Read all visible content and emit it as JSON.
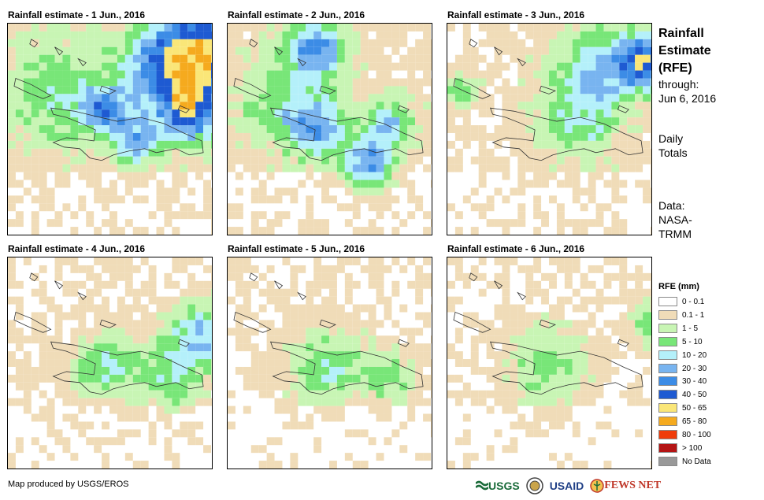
{
  "panels": [
    {
      "title": "Rainfall estimate - 1 Jun., 2016",
      "day": 1
    },
    {
      "title": "Rainfall estimate - 2 Jun., 2016",
      "day": 2
    },
    {
      "title": "Rainfall estimate - 3 Jun., 2016",
      "day": 3
    },
    {
      "title": "Rainfall estimate - 4 Jun., 2016",
      "day": 4
    },
    {
      "title": "Rainfall estimate - 5 Jun., 2016",
      "day": 5
    },
    {
      "title": "Rainfall estimate - 6 Jun., 2016",
      "day": 6
    }
  ],
  "sidebar": {
    "title_line1": "Rainfall",
    "title_line2": "Estimate",
    "title_line3": "(RFE)",
    "through_label": "through:",
    "through_date": "Jun 6, 2016",
    "daily_line1": "Daily",
    "daily_line2": "Totals",
    "data_line1": "Data:",
    "data_line2": "NASA-",
    "data_line3": "TRMM"
  },
  "legend": {
    "title": "RFE (mm)",
    "items": [
      {
        "label": "0 - 0.1",
        "color": "#ffffff"
      },
      {
        "label": "0.1 - 1",
        "color": "#f0dcb8"
      },
      {
        "label": "1 - 5",
        "color": "#c8f5b4"
      },
      {
        "label": "5 - 10",
        "color": "#78e678"
      },
      {
        "label": "10 - 20",
        "color": "#b4f0fa"
      },
      {
        "label": "20 - 30",
        "color": "#78b4f0"
      },
      {
        "label": "30 - 40",
        "color": "#3c8ce6"
      },
      {
        "label": "40 - 50",
        "color": "#1e5ad2"
      },
      {
        "label": "50 - 65",
        "color": "#fae678"
      },
      {
        "label": "65 - 80",
        "color": "#f5aa1e"
      },
      {
        "label": "80 - 100",
        "color": "#f03c0a"
      },
      {
        "label": "> 100",
        "color": "#b41414"
      },
      {
        "label": "No Data",
        "color": "#999999"
      }
    ]
  },
  "footer": {
    "credit": "Map produced by USGS/EROS"
  },
  "logos": {
    "usgs": "USGS",
    "usaid": "USAID",
    "fewsnet": "FEWS NET"
  }
}
